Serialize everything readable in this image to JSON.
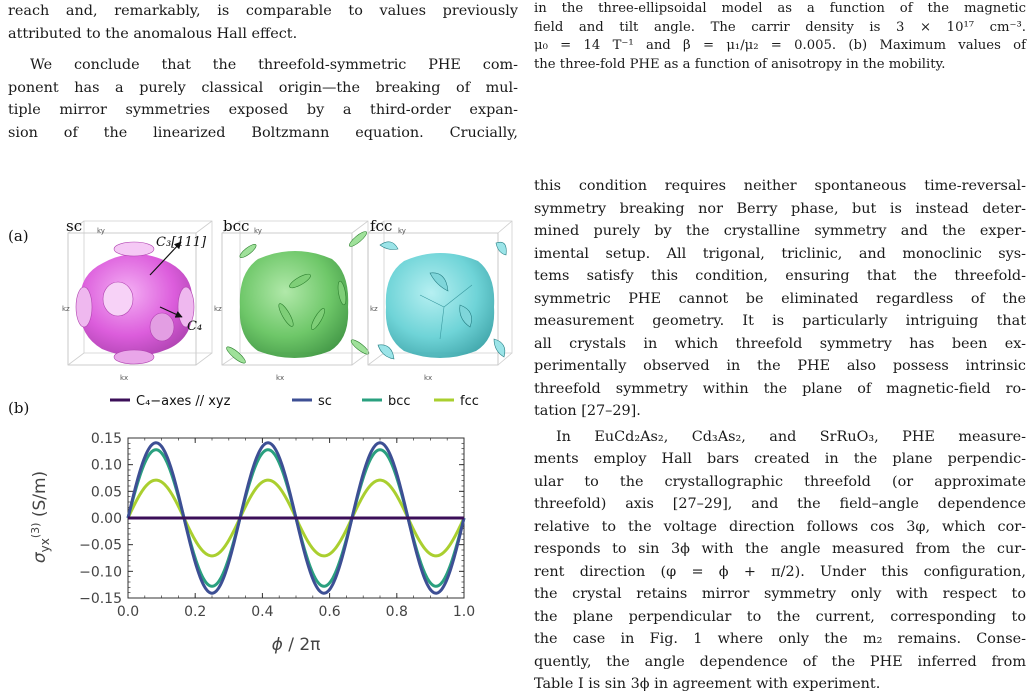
{
  "left_column": {
    "para1_lines": [
      "reach and, remarkably, is comparable to values previously",
      "attributed to the anomalous Hall effect."
    ],
    "para2_lines": [
      "We conclude that the threefold-symmetric PHE com-",
      "ponent has a purely classical origin—the breaking of mul-",
      "tiple mirror symmetries exposed by a third-order expan-",
      "sion of the linearized Boltzmann equation.   Crucially,"
    ]
  },
  "caption": {
    "lines": [
      "in the three-ellipsoidal model as a function of the magnetic",
      "field and tilt angle.   The carrir density is 3 × 10¹⁷ cm⁻³.",
      "μ₀ = 14 T⁻¹ and β = μ₁/μ₂ = 0.005. (b) Maximum values of",
      "the three-fold PHE as a function of anisotropy in the mobility."
    ]
  },
  "right_column": {
    "para1_lines": [
      "this condition requires neither spontaneous time-reversal-",
      "symmetry breaking nor Berry phase, but is instead deter-",
      "mined purely by the crystalline symmetry and the exper-",
      "imental setup.  All trigonal, triclinic, and monoclinic sys-",
      "tems satisfy this condition, ensuring that the threefold-",
      "symmetric PHE cannot be eliminated regardless of the",
      "measurement geometry. It is particularly intriguing that",
      "all crystals in which threefold symmetry has been ex-",
      "perimentally observed in the PHE also possess intrinsic",
      "threefold symmetry within the plane of magnetic-field ro-",
      "tation [27–29]."
    ],
    "para2_lines": [
      "In EuCd₂As₂, Cd₃As₂, and SrRuO₃, PHE measure-",
      "ments employ Hall bars created in the plane perpendic-",
      "ular to the crystallographic threefold (or approximate",
      "threefold) axis [27–29], and the field–angle dependence",
      "relative to the voltage direction follows cos 3φ, which cor-",
      "responds to sin 3ϕ with the angle measured from the cur-",
      "rent direction (φ = ϕ + π/2).  Under this configuration,",
      "the crystal retains mirror symmetry only with respect to",
      "the plane perpendicular to the current, corresponding to",
      "the case in Fig. 1 where only the m₂ remains.  Conse-",
      "quently, the angle dependence of the PHE inferred from",
      "Table I is sin 3ϕ in agreement with experiment."
    ]
  },
  "figure": {
    "panel_a": {
      "label": "(a)",
      "boxes": [
        {
          "name": "sc",
          "color": "#d94fd9"
        },
        {
          "name": "bcc",
          "color": "#3dad3d"
        },
        {
          "name": "fcc",
          "color": "#4fc4c9"
        }
      ],
      "axis_ky": "ky",
      "axis_kz": "kz",
      "axis_kx": "kx",
      "arrow_c3": "C₃[111]",
      "arrow_c4": "C₄"
    },
    "panel_b": {
      "label": "(b)",
      "legend": [
        {
          "name": "C₄−axes // xyz",
          "color": "#3b0f58"
        },
        {
          "name": "sc",
          "color": "#3d4f94"
        },
        {
          "name": "bcc",
          "color": "#2aa07f"
        },
        {
          "name": "fcc",
          "color": "#aacf2f"
        }
      ],
      "ylabel": "σyx(3) (S/m)",
      "xlabel": "ϕ / 2π"
    }
  },
  "chart_data": {
    "type": "line",
    "xlabel": "ϕ / 2π",
    "ylabel": "σyx(3) (S/m)",
    "xlim": [
      0.0,
      1.0
    ],
    "ylim": [
      -0.15,
      0.15
    ],
    "x_ticks": [
      "0.0",
      "0.2",
      "0.4",
      "0.6",
      "0.8",
      "1.0"
    ],
    "y_ticks": [
      "0.15",
      "0.10",
      "0.05",
      "0.00",
      "−0.05",
      "−0.10",
      "−0.15"
    ],
    "x_tick_values": [
      0.0,
      0.2,
      0.4,
      0.6,
      0.8,
      1.0
    ],
    "y_tick_values": [
      0.15,
      0.1,
      0.05,
      0.0,
      -0.05,
      -0.1,
      -0.15
    ],
    "function": "amplitude * sin(3 * 2π x)",
    "series": [
      {
        "name": "C₄−axes // xyz",
        "amplitude": 0.0,
        "color": "#3b0f58"
      },
      {
        "name": "sc",
        "amplitude": 0.141,
        "color": "#3d4f94"
      },
      {
        "name": "bcc",
        "amplitude": 0.128,
        "color": "#2aa07f"
      },
      {
        "name": "fcc",
        "amplitude": 0.071,
        "color": "#aacf2f"
      }
    ],
    "legend_position": "top",
    "grid": false
  }
}
